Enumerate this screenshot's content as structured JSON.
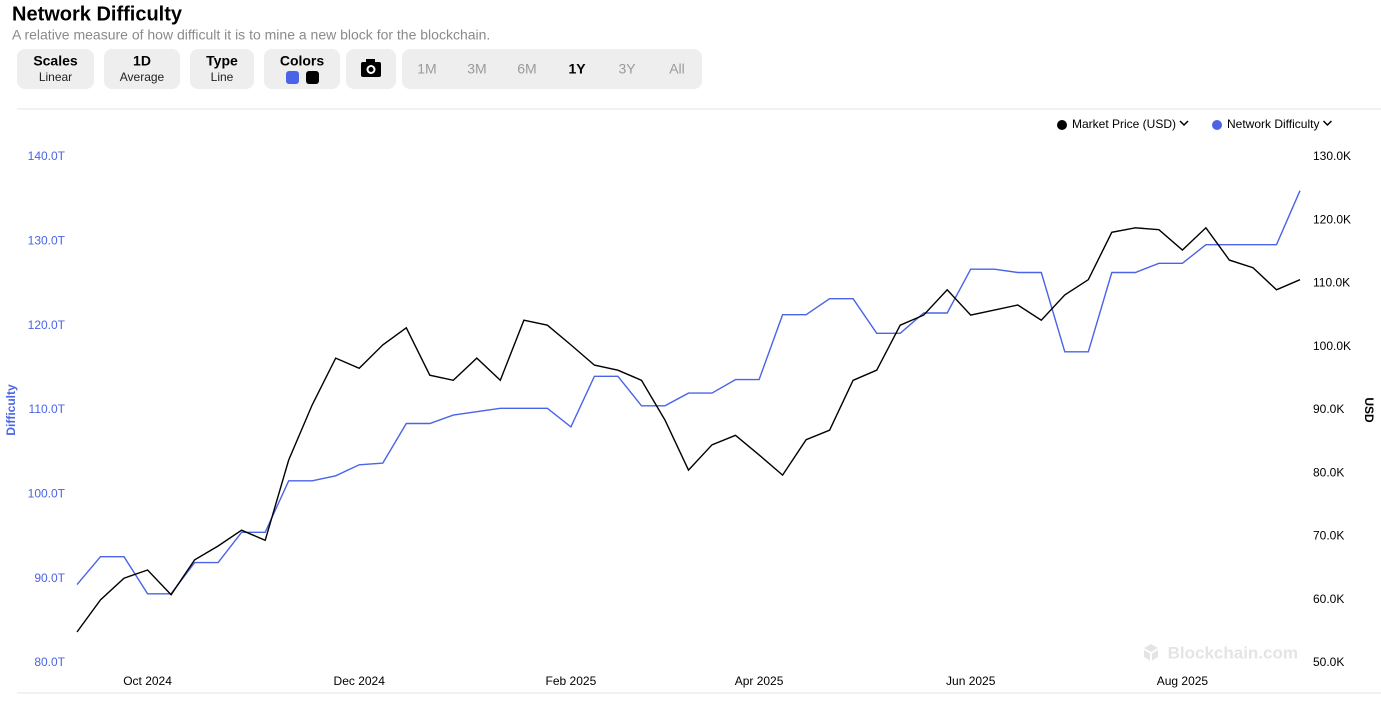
{
  "chart_data": {
    "type": "line",
    "title": "Network Difficulty",
    "subtitle": "A relative measure of how difficult it is to mine a new block for the blockchain.",
    "categories": [
      null,
      null,
      null,
      "Oct 2024",
      null,
      null,
      null,
      null,
      null,
      null,
      null,
      null,
      "Dec 2024",
      null,
      null,
      null,
      null,
      null,
      null,
      null,
      null,
      "Feb 2025",
      null,
      null,
      null,
      null,
      null,
      null,
      null,
      "Apr 2025",
      null,
      null,
      null,
      null,
      null,
      null,
      null,
      null,
      "Jun 2025",
      null,
      null,
      null,
      null,
      null,
      null,
      null,
      null,
      "Aug 2025",
      null,
      null,
      null,
      null,
      null
    ],
    "series": [
      {
        "name": "Market Price (USD)",
        "color": "#000000",
        "axis": "y2",
        "values": [
          54900,
          60000,
          63400,
          64700,
          60800,
          66300,
          68500,
          71000,
          69400,
          82100,
          90800,
          98200,
          96600,
          100300,
          103000,
          95500,
          94700,
          98200,
          94700,
          104200,
          103400,
          100300,
          97100,
          96300,
          94700,
          88400,
          80500,
          84500,
          86000,
          82900,
          79700,
          85300,
          86800,
          94700,
          96300,
          103400,
          105000,
          109000,
          105000,
          105800,
          106600,
          104200,
          108200,
          110600,
          118100,
          118800,
          118500,
          115300,
          118800,
          113700,
          112500,
          109000,
          110600
        ]
      },
      {
        "name": "Network Difficulty",
        "color": "#4a63e7",
        "values": [
          89.3,
          92.6,
          92.6,
          88.2,
          88.2,
          91.9,
          91.9,
          95.5,
          95.5,
          101.6,
          101.6,
          102.2,
          103.5,
          103.7,
          108.4,
          108.4,
          109.4,
          109.8,
          110.2,
          110.2,
          110.2,
          108.0,
          114.0,
          114.0,
          110.5,
          110.5,
          112.0,
          112.0,
          113.6,
          113.6,
          121.3,
          121.3,
          123.2,
          123.2,
          119.1,
          119.1,
          121.5,
          121.5,
          126.7,
          126.7,
          126.3,
          126.3,
          116.9,
          116.9,
          126.3,
          126.3,
          127.4,
          127.4,
          129.6,
          129.6,
          129.6,
          129.6,
          136.0
        ]
      }
    ],
    "ylabel": "Difficulty",
    "y2label": "USD",
    "ylim": [
      80,
      140
    ],
    "yticks": [
      {
        "value": 80,
        "label": "80.0T"
      },
      {
        "value": 90,
        "label": "90.0T"
      },
      {
        "value": 100,
        "label": "100.0T"
      },
      {
        "value": 110,
        "label": "110.0T"
      },
      {
        "value": 120,
        "label": "120.0T"
      },
      {
        "value": 130,
        "label": "130.0T"
      },
      {
        "value": 140,
        "label": "140.0T"
      }
    ],
    "y2lim": [
      50000,
      130000
    ],
    "y2ticks": [
      {
        "value": 50000,
        "label": "50.0K"
      },
      {
        "value": 60000,
        "label": "60.0K"
      },
      {
        "value": 70000,
        "label": "70.0K"
      },
      {
        "value": 80000,
        "label": "80.0K"
      },
      {
        "value": 90000,
        "label": "90.0K"
      },
      {
        "value": 100000,
        "label": "100.0K"
      },
      {
        "value": 110000,
        "label": "110.0K"
      },
      {
        "value": 120000,
        "label": "120.0K"
      },
      {
        "value": 130000,
        "label": "130.0K"
      }
    ],
    "grid": false,
    "legend": "top-right",
    "watermark": "Blockchain.com"
  },
  "toolbar": {
    "buttons": [
      {
        "label": "Scales",
        "value": "Linear"
      },
      {
        "label": "1D",
        "value": "Average"
      },
      {
        "label": "Type",
        "value": "Line"
      },
      {
        "label": "Colors"
      }
    ],
    "ranges": [
      "1M",
      "3M",
      "6M",
      "1Y",
      "3Y",
      "All"
    ],
    "selected_range": "1Y"
  }
}
